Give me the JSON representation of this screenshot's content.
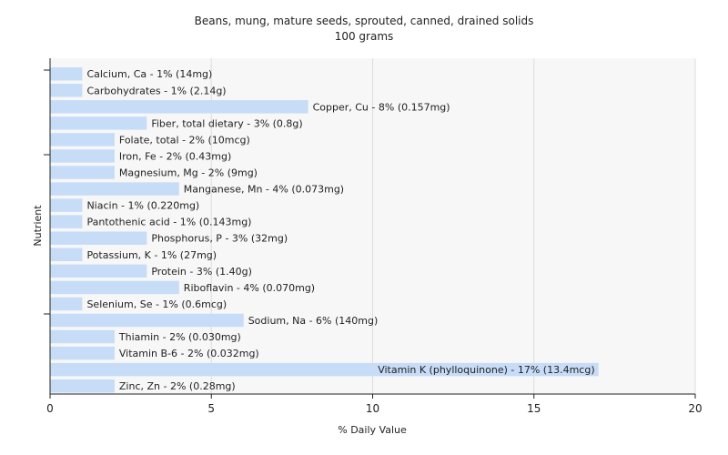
{
  "chart_data": {
    "type": "bar",
    "orientation": "horizontal",
    "title": "Beans, mung, mature seeds, sprouted, canned, drained solids",
    "subtitle": "100 grams",
    "xlabel": "% Daily Value",
    "ylabel": "Nutrient",
    "xlim": [
      0,
      20
    ],
    "xticks": [
      0,
      5,
      10,
      15,
      20
    ],
    "grid": true,
    "colors": {
      "bar": "#c6dcf7",
      "grid": "#dddddd",
      "axis": "#222222",
      "plot_bg": "#f7f7f7"
    },
    "categories": [
      "Calcium, Ca",
      "Carbohydrates",
      "Copper, Cu",
      "Fiber, total dietary",
      "Folate, total",
      "Iron, Fe",
      "Magnesium, Mg",
      "Manganese, Mn",
      "Niacin",
      "Pantothenic acid",
      "Phosphorus, P",
      "Potassium, K",
      "Protein",
      "Riboflavin",
      "Selenium, Se",
      "Sodium, Na",
      "Thiamin",
      "Vitamin B-6",
      "Vitamin K (phylloquinone)",
      "Zinc, Zn"
    ],
    "values": [
      1,
      1,
      8,
      3,
      2,
      2,
      2,
      4,
      1,
      1,
      3,
      1,
      3,
      4,
      1,
      6,
      2,
      2,
      17,
      2
    ],
    "labels": [
      "Calcium, Ca - 1% (14mg)",
      "Carbohydrates - 1% (2.14g)",
      "Copper, Cu - 8% (0.157mg)",
      "Fiber, total dietary - 3% (0.8g)",
      "Folate, total - 2% (10mcg)",
      "Iron, Fe - 2% (0.43mg)",
      "Magnesium, Mg - 2% (9mg)",
      "Manganese, Mn - 4% (0.073mg)",
      "Niacin - 1% (0.220mg)",
      "Pantothenic acid - 1% (0.143mg)",
      "Phosphorus, P - 3% (32mg)",
      "Potassium, K - 1% (27mg)",
      "Protein - 3% (1.40g)",
      "Riboflavin - 4% (0.070mg)",
      "Selenium, Se - 1% (0.6mcg)",
      "Sodium, Na - 6% (140mg)",
      "Thiamin - 2% (0.030mg)",
      "Vitamin B-6 - 2% (0.032mg)",
      "Vitamin K (phylloquinone) - 17% (13.4mcg)",
      "Zinc, Zn - 2% (0.28mg)"
    ]
  }
}
